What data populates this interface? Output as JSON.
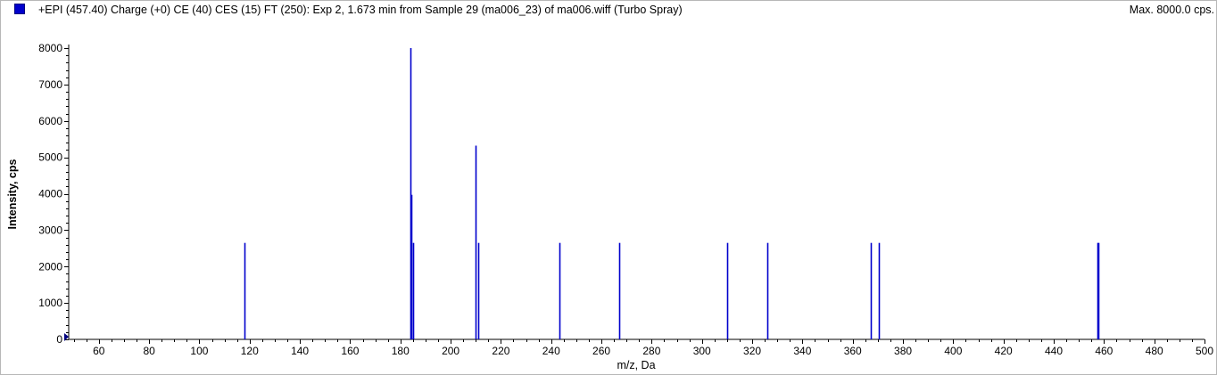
{
  "header": {
    "title": "+EPI (457.40) Charge (+0) CE (40) CES (15) FT (250): Exp 2, 1.673 min from Sample 29 (ma006_23) of ma006.wiff (Turbo Spray)",
    "max_label": "Max. 8000.0 cps."
  },
  "colors": {
    "series": "#0000cc",
    "axis": "#000000"
  },
  "chart_data": {
    "type": "bar",
    "xlabel": "m/z, Da",
    "ylabel": "Intensity, cps",
    "xlim": [
      48,
      500
    ],
    "ylim": [
      0,
      8000
    ],
    "x_ticks": [
      60,
      80,
      100,
      120,
      140,
      160,
      180,
      200,
      220,
      240,
      260,
      280,
      300,
      320,
      340,
      360,
      380,
      400,
      420,
      440,
      460,
      480,
      500
    ],
    "y_ticks": [
      0,
      1000,
      2000,
      3000,
      4000,
      5000,
      6000,
      7000,
      8000
    ],
    "peaks": [
      {
        "x": 117.8,
        "y": 2650
      },
      {
        "x": 183.9,
        "y": 8000
      },
      {
        "x": 184.4,
        "y": 3970
      },
      {
        "x": 184.9,
        "y": 2650
      },
      {
        "x": 209.9,
        "y": 5320
      },
      {
        "x": 211.1,
        "y": 2650
      },
      {
        "x": 243.2,
        "y": 2650
      },
      {
        "x": 267.2,
        "y": 2650
      },
      {
        "x": 309.9,
        "y": 2650
      },
      {
        "x": 326.1,
        "y": 2650
      },
      {
        "x": 367.1,
        "y": 2650
      },
      {
        "x": 370.3,
        "y": 2650
      },
      {
        "x": 457.3,
        "y": 2650
      },
      {
        "x": 457.6,
        "y": 2650
      }
    ]
  }
}
